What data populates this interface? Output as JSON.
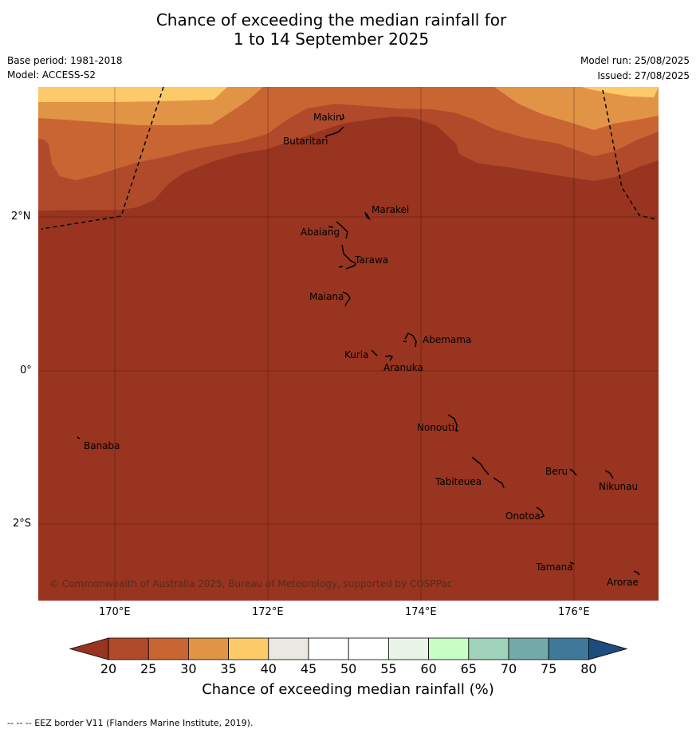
{
  "title_line1": "Chance of exceeding the median rainfall for",
  "title_line2": "1 to 14 September 2025",
  "base_period": "Base period: 1981-2018",
  "model": "Model: ACCESS-S2",
  "model_run": "Model run: 25/08/2025",
  "issued": "Issued: 27/08/2025",
  "axes": {
    "x_ticks": [
      "170°E",
      "172°E",
      "174°E",
      "176°E"
    ],
    "y_ticks": [
      "2°N",
      "0°",
      "2°S"
    ]
  },
  "islands": [
    {
      "name": "Makin"
    },
    {
      "name": "Butaritari"
    },
    {
      "name": "Marakei"
    },
    {
      "name": "Abaiang"
    },
    {
      "name": "Tarawa"
    },
    {
      "name": "Maiana"
    },
    {
      "name": "Abemama"
    },
    {
      "name": "Kuria"
    },
    {
      "name": "Aranuka"
    },
    {
      "name": "Nonouti"
    },
    {
      "name": "Banaba"
    },
    {
      "name": "Beru"
    },
    {
      "name": "Nikunau"
    },
    {
      "name": "Tabiteuea"
    },
    {
      "name": "Onotoa"
    },
    {
      "name": "Tamana"
    },
    {
      "name": "Arorae"
    }
  ],
  "copyright": "© Commonwealth of Australia 2025, Bureau of Meteorology, supported by COSPPac",
  "colorbar": {
    "ticks": [
      "20",
      "25",
      "30",
      "35",
      "40",
      "45",
      "50",
      "55",
      "60",
      "65",
      "70",
      "75",
      "80"
    ],
    "colors": [
      "#b04a2a",
      "#c96532",
      "#e19446",
      "#fdca69",
      "#ebe7e3",
      "#ffffff",
      "#ffffff",
      "#e9f5e7",
      "#c8fdc6",
      "#a0d1bb",
      "#74a9a9",
      "#3f7899"
    ],
    "under_color": "#98341f",
    "over_color": "#1e4c7e",
    "label": "Chance of exceeding median rainfall (%)"
  },
  "footer": "--  --  -- EEZ border V11 (Flanders Marine Institute, 2019).",
  "map_colors": {
    "lt20": "#98341f",
    "c20_25": "#b04a2a",
    "c25_30": "#c96532",
    "c30_35": "#e19446",
    "c35_40": "#fdca69"
  }
}
